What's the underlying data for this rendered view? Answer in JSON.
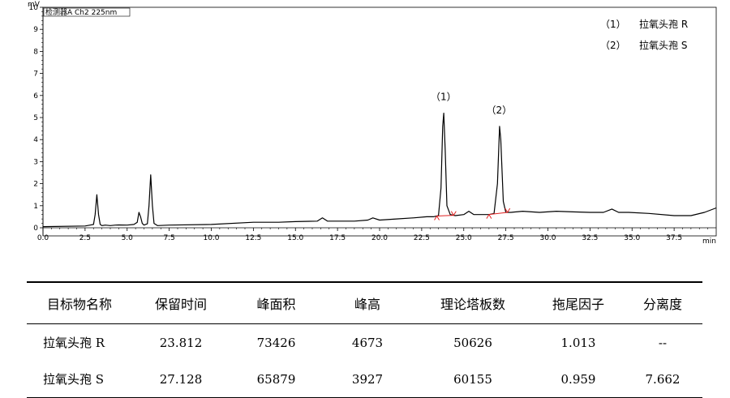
{
  "chart_data": {
    "type": "line",
    "detector_label": "检测器A Ch2 225nm",
    "y_unit": "mV",
    "x_unit": "min",
    "xlim": [
      0.0,
      40.0
    ],
    "ylim": [
      0,
      10
    ],
    "x_ticks": [
      "0.0",
      "2.5",
      "5.0",
      "7.5",
      "10.0",
      "12.5",
      "15.0",
      "17.5",
      "20.0",
      "22.5",
      "25.0",
      "27.5",
      "30.0",
      "32.5",
      "35.0",
      "37.5"
    ],
    "y_ticks": [
      "0",
      "1",
      "2",
      "3",
      "4",
      "5",
      "6",
      "7",
      "8",
      "9",
      "10"
    ],
    "legend": [
      {
        "marker": "（1）",
        "text": "拉氧头孢 R"
      },
      {
        "marker": "（2）",
        "text": "拉氧头孢 S"
      }
    ],
    "peak_labels": [
      {
        "label": "（1）",
        "x": 23.8,
        "y": 5.2
      },
      {
        "label": "（2）",
        "x": 27.1,
        "y": 4.6
      }
    ],
    "series": [
      {
        "x": [
          0.0,
          2.5,
          2.8,
          3.0,
          3.1,
          3.2,
          3.3,
          3.4,
          3.5,
          3.7,
          4.0,
          4.3,
          4.5,
          5.0,
          5.4,
          5.6,
          5.7,
          5.8,
          5.9,
          6.0,
          6.2,
          6.3,
          6.4,
          6.5,
          6.6,
          6.8,
          7.5,
          10.0,
          12.5,
          14.0,
          15.0,
          16.3,
          16.6,
          16.9,
          17.2,
          17.5,
          18.5,
          19.3,
          19.6,
          20.0,
          21.0,
          22.0,
          22.8,
          23.2,
          23.5,
          23.65,
          23.75,
          23.81,
          23.9,
          24.0,
          24.2,
          24.5,
          25.0,
          25.3,
          25.6,
          26.5,
          26.8,
          27.0,
          27.13,
          27.2,
          27.35,
          27.5,
          27.8,
          28.5,
          29.5,
          30.5,
          31.5,
          32.5,
          33.3,
          33.8,
          34.2,
          34.8,
          36.0,
          37.5,
          38.5,
          39.3,
          40.0
        ],
        "y": [
          0.05,
          0.08,
          0.12,
          0.15,
          0.6,
          1.5,
          0.6,
          0.15,
          0.1,
          0.12,
          0.1,
          0.12,
          0.13,
          0.12,
          0.15,
          0.25,
          0.7,
          0.5,
          0.2,
          0.12,
          0.18,
          1.0,
          2.4,
          1.0,
          0.2,
          0.1,
          0.12,
          0.15,
          0.25,
          0.25,
          0.28,
          0.3,
          0.45,
          0.3,
          0.3,
          0.3,
          0.3,
          0.35,
          0.45,
          0.35,
          0.4,
          0.45,
          0.5,
          0.5,
          0.55,
          1.8,
          4.6,
          5.2,
          3.5,
          1.0,
          0.6,
          0.55,
          0.6,
          0.75,
          0.6,
          0.6,
          0.65,
          2.0,
          4.6,
          4.0,
          1.2,
          0.7,
          0.7,
          0.75,
          0.7,
          0.75,
          0.72,
          0.7,
          0.7,
          0.85,
          0.7,
          0.7,
          0.65,
          0.55,
          0.55,
          0.7,
          0.9
        ]
      }
    ],
    "integration_markers": [
      {
        "start": 23.4,
        "end": 24.4
      },
      {
        "start": 26.5,
        "end": 27.6
      }
    ],
    "grid": false
  },
  "table": {
    "headers": [
      "目标物名称",
      "保留时间",
      "峰面积",
      "峰高",
      "理论塔板数",
      "拖尾因子",
      "分离度"
    ],
    "rows": [
      [
        "拉氧头孢 R",
        "23.812",
        "73426",
        "4673",
        "50626",
        "1.013",
        "--"
      ],
      [
        "拉氧头孢 S",
        "27.128",
        "65879",
        "3927",
        "60155",
        "0.959",
        "7.662"
      ]
    ]
  }
}
